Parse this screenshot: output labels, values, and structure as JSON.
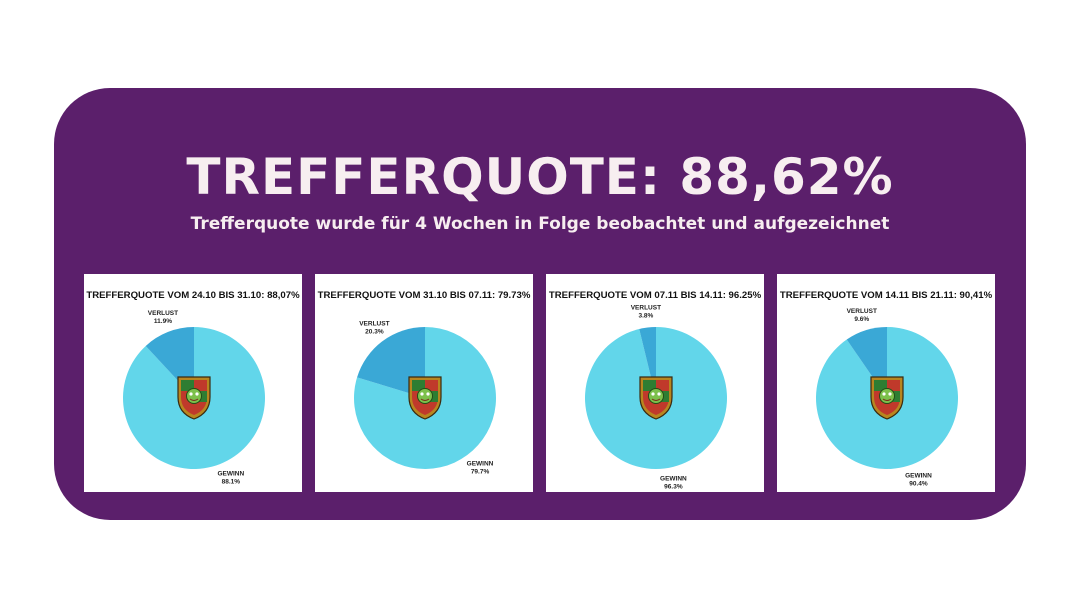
{
  "headline": "TREFFERQUOTE: 88,62%",
  "subline": "Trefferquote wurde für 4 Wochen in Folge beobachtet und aufgezeichnet",
  "colors": {
    "banner": "#5b1f6b",
    "win": "#62d6ea",
    "loss": "#3aa8d6",
    "text_light": "#f7eef0"
  },
  "chart_data": [
    {
      "type": "pie",
      "title": "TREFFERQUOTE VOM 24.10 BIS 31.10: 88,07%",
      "labels": [
        "VERLUST",
        "GEWINN"
      ],
      "values": [
        11.9,
        88.1
      ],
      "value_labels": [
        "11.9%",
        "88.1%"
      ]
    },
    {
      "type": "pie",
      "title": "TREFFERQUOTE VOM 31.10 BIS 07.11: 79.73%",
      "labels": [
        "VERLUST",
        "GEWINN"
      ],
      "values": [
        20.3,
        79.7
      ],
      "value_labels": [
        "20.3%",
        "79.7%"
      ]
    },
    {
      "type": "pie",
      "title": "TREFFERQUOTE VOM 07.11 BIS 14.11: 96.25%",
      "labels": [
        "VERLUST",
        "GEWINN"
      ],
      "values": [
        3.8,
        96.3
      ],
      "value_labels": [
        "3.8%",
        "96.3%"
      ]
    },
    {
      "type": "pie",
      "title": "TREFFERQUOTE VOM 14.11 BIS 21.11: 90,41%",
      "labels": [
        "VERLUST",
        "GEWINN"
      ],
      "values": [
        9.6,
        90.4
      ],
      "value_labels": [
        "9.6%",
        "90.4%"
      ]
    }
  ]
}
